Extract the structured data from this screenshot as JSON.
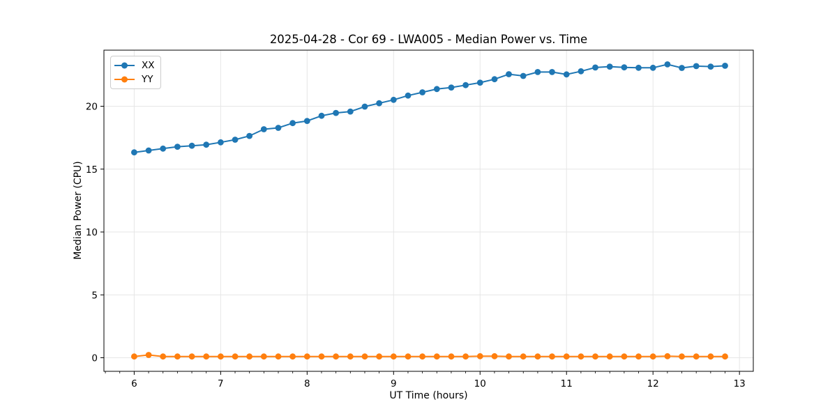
{
  "chart_data": {
    "type": "line",
    "title": "2025-04-28 - Cor 69 - LWA005 - Median Power vs. Time",
    "xlabel": "UT Time (hours)",
    "ylabel": "Median Power (CPU)",
    "xlim": [
      5.65,
      13.16
    ],
    "ylim": [
      -1.08,
      24.46
    ],
    "x_ticks": [
      6,
      7,
      8,
      9,
      10,
      11,
      12,
      13
    ],
    "x_tick_labels": [
      "6",
      "7",
      "8",
      "9",
      "10",
      "11",
      "12",
      "13"
    ],
    "y_ticks": [
      0,
      5,
      10,
      15,
      20
    ],
    "y_tick_labels": [
      "0",
      "5",
      "10",
      "15",
      "20"
    ],
    "x_minor_tick_interval": 0.166667,
    "grid": true,
    "grid_color": "#e6e6e6",
    "axis_color": "#000000",
    "legend": {
      "position": "upper-left"
    },
    "x": [
      6.0,
      6.167,
      6.333,
      6.5,
      6.667,
      6.833,
      7.0,
      7.167,
      7.333,
      7.5,
      7.667,
      7.833,
      8.0,
      8.167,
      8.333,
      8.5,
      8.667,
      8.833,
      9.0,
      9.167,
      9.333,
      9.5,
      9.667,
      9.833,
      10.0,
      10.167,
      10.333,
      10.5,
      10.667,
      10.833,
      11.0,
      11.167,
      11.333,
      11.5,
      11.667,
      11.833,
      12.0,
      12.167,
      12.333,
      12.5,
      12.667,
      12.833
    ],
    "series": [
      {
        "name": "XX",
        "color": "#1f77b4",
        "values": [
          16.33,
          16.48,
          16.63,
          16.78,
          16.86,
          16.94,
          17.13,
          17.34,
          17.64,
          18.17,
          18.28,
          18.66,
          18.83,
          19.24,
          19.47,
          19.58,
          19.97,
          20.24,
          20.51,
          20.85,
          21.11,
          21.37,
          21.49,
          21.68,
          21.88,
          22.15,
          22.55,
          22.41,
          22.72,
          22.72,
          22.53,
          22.78,
          23.08,
          23.15,
          23.09,
          23.06,
          23.06,
          23.33,
          23.05,
          23.19,
          23.15,
          23.22
        ]
      },
      {
        "name": "YY",
        "color": "#ff7f0e",
        "values": [
          0.1,
          0.22,
          0.1,
          0.1,
          0.1,
          0.1,
          0.1,
          0.1,
          0.1,
          0.1,
          0.1,
          0.1,
          0.1,
          0.1,
          0.1,
          0.1,
          0.1,
          0.1,
          0.1,
          0.1,
          0.1,
          0.1,
          0.1,
          0.1,
          0.12,
          0.12,
          0.1,
          0.1,
          0.1,
          0.1,
          0.1,
          0.1,
          0.1,
          0.1,
          0.1,
          0.1,
          0.1,
          0.12,
          0.1,
          0.1,
          0.1,
          0.1
        ]
      }
    ]
  }
}
